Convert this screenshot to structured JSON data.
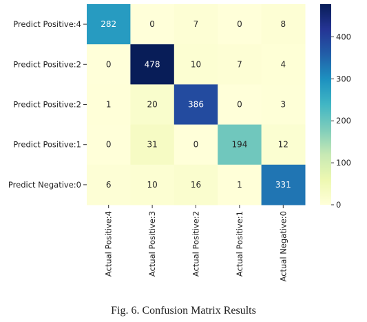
{
  "chart_data": {
    "type": "heatmap",
    "row_labels": [
      "Predict Positive:4",
      "Predict Positive:2",
      "Predict Positive:2",
      "Predict Positive:1",
      "Predict Negative:0"
    ],
    "col_labels": [
      "Actual Positive:4",
      "Actual Positive:3",
      "Actual Positive:2",
      "Actual Positive:1",
      "Actual Negative:0"
    ],
    "values": [
      [
        282,
        0,
        7,
        0,
        8
      ],
      [
        0,
        478,
        10,
        7,
        4
      ],
      [
        1,
        20,
        386,
        0,
        3
      ],
      [
        0,
        31,
        0,
        194,
        12
      ],
      [
        6,
        10,
        16,
        1,
        331
      ]
    ],
    "colormap": "YlGnBu",
    "colorbar": {
      "range": [
        0,
        478
      ],
      "ticks": [
        0,
        100,
        200,
        300,
        400
      ]
    }
  },
  "caption": "Fig. 6.   Confusion Matrix Results"
}
